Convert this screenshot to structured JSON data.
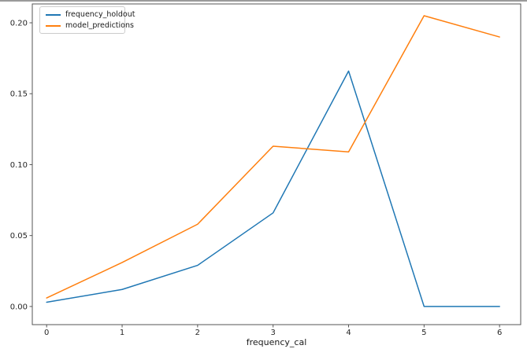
{
  "figure": {
    "background": "#ffffff",
    "top_border_color": "#9a9a9a",
    "spine_color": "#555555",
    "tick_label_color": "#262626"
  },
  "chart_data": {
    "type": "line",
    "title": "",
    "xlabel": "frequency_cal",
    "ylabel": "",
    "x": [
      0,
      1,
      2,
      3,
      4,
      5,
      6
    ],
    "series": [
      {
        "name": "frequency_holdout",
        "color": "#1f77b4",
        "values": [
          0.003,
          0.012,
          0.029,
          0.066,
          0.166,
          0.0,
          0.0
        ]
      },
      {
        "name": "model_predictions",
        "color": "#ff7f0e",
        "values": [
          0.006,
          0.031,
          0.058,
          0.113,
          0.109,
          0.205,
          0.19
        ]
      }
    ],
    "x_tick_labels": [
      "0",
      "1",
      "2",
      "3",
      "4",
      "5",
      "6"
    ],
    "x_tick_values": [
      0,
      1,
      2,
      3,
      4,
      5,
      6
    ],
    "y_tick_labels": [
      "0.00",
      "0.05",
      "0.10",
      "0.15",
      "0.20"
    ],
    "y_tick_values": [
      0.0,
      0.05,
      0.1,
      0.15,
      0.2
    ],
    "xlim": [
      -0.19,
      6.28
    ],
    "ylim": [
      -0.0128,
      0.2133
    ],
    "grid": false,
    "legend_position": "upper-left"
  }
}
